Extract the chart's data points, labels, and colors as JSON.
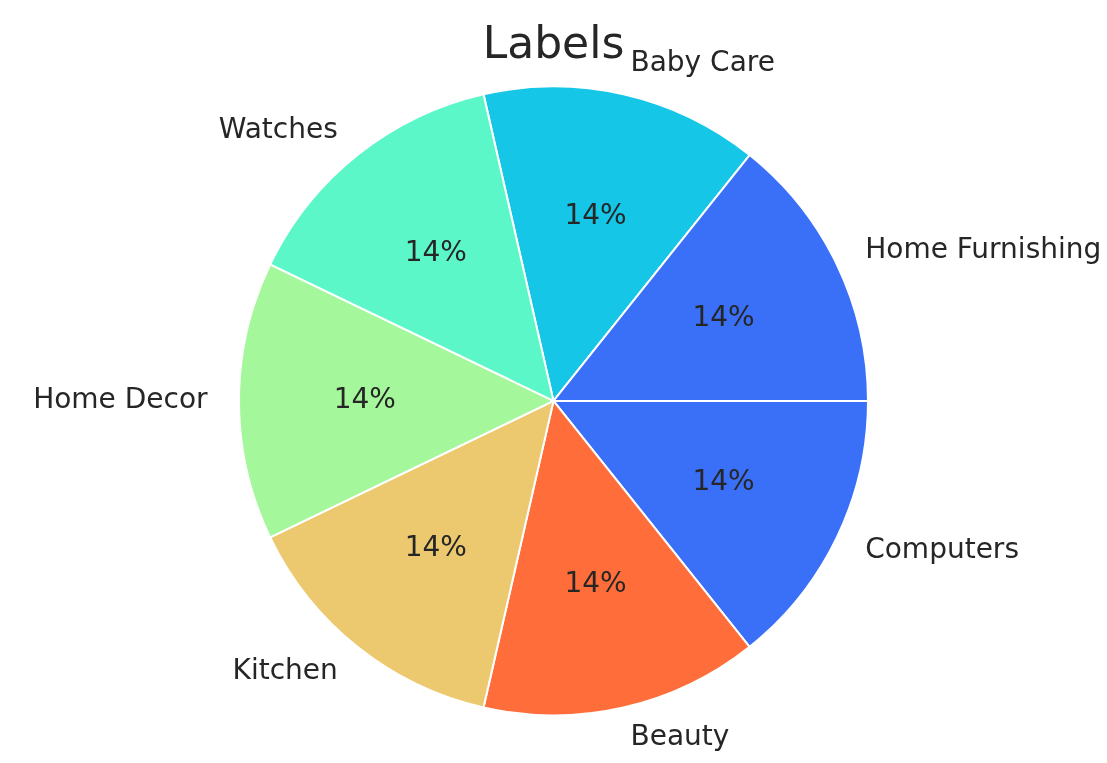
{
  "chart_data": {
    "type": "pie",
    "title": "Labels",
    "categories": [
      "Baby Care",
      "Home Furnishing",
      "Computers",
      "Beauty",
      "Kitchen",
      "Home Decor",
      "Watches"
    ],
    "values": [
      14.2857,
      14.2857,
      14.2857,
      14.2857,
      14.2857,
      14.2857,
      14.2857
    ],
    "value_labels": [
      "14%",
      "14%",
      "14%",
      "14%",
      "14%",
      "14%",
      "14%"
    ],
    "colors": [
      "#15c6e6",
      "#3a6ff7",
      "#3a6ff7",
      "#ff6e3a",
      "#ecc86f",
      "#a4f79b",
      "#5cf7c9"
    ],
    "legend": false
  }
}
